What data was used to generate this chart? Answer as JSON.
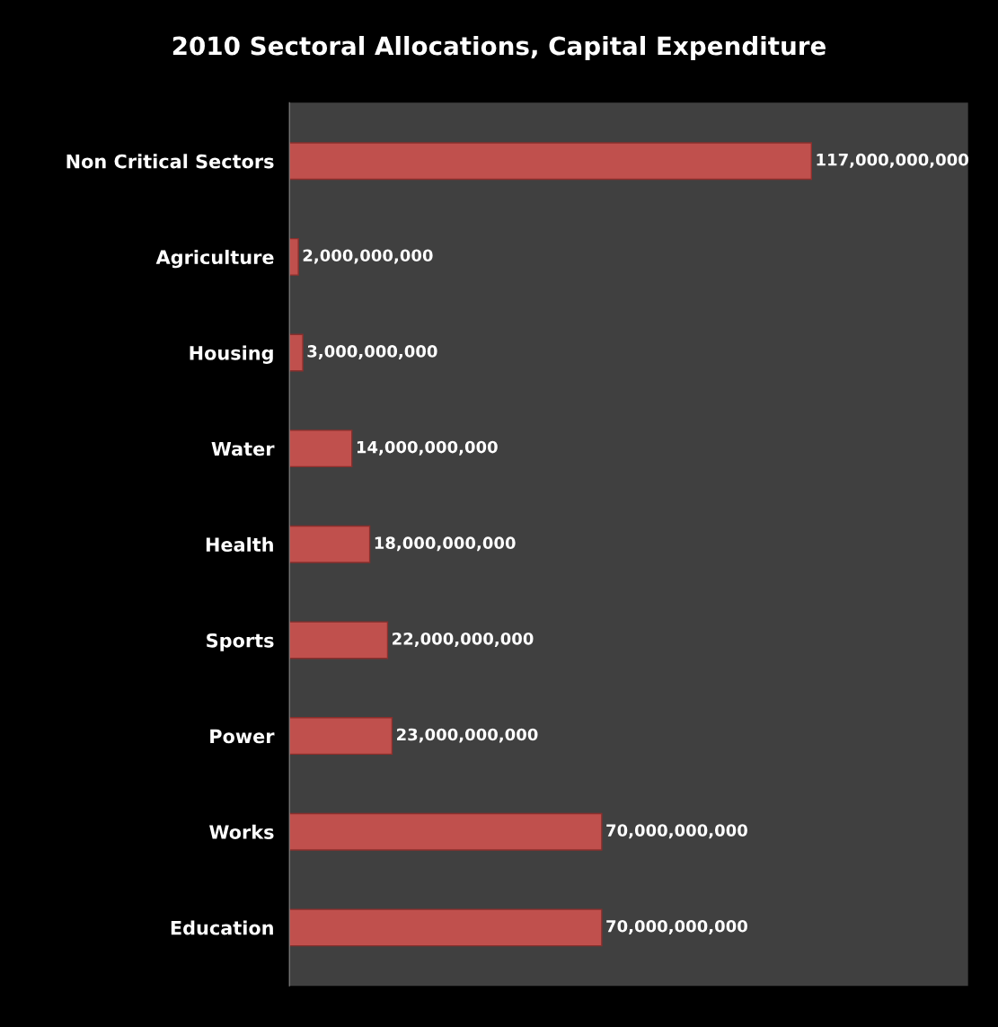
{
  "chart_data": {
    "type": "bar",
    "orientation": "horizontal",
    "title": "2010 Sectoral Allocations, Capital Expenditure",
    "categories": [
      "Non Critical Sectors",
      "Agriculture",
      "Housing",
      "Water",
      "Health",
      "Sports",
      "Power",
      "Works",
      "Education"
    ],
    "values": [
      117000000000,
      2000000000,
      3000000000,
      14000000000,
      18000000000,
      22000000000,
      23000000000,
      70000000000,
      70000000000
    ],
    "value_labels": [
      "117,000,000,000",
      "2,000,000,000",
      "3,000,000,000",
      "14,000,000,000",
      "18,000,000,000",
      "22,000,000,000",
      "23,000,000,000",
      "70,000,000,000",
      "70,000,000,000"
    ],
    "color": "#c0504d",
    "grid": false,
    "legend": false
  }
}
